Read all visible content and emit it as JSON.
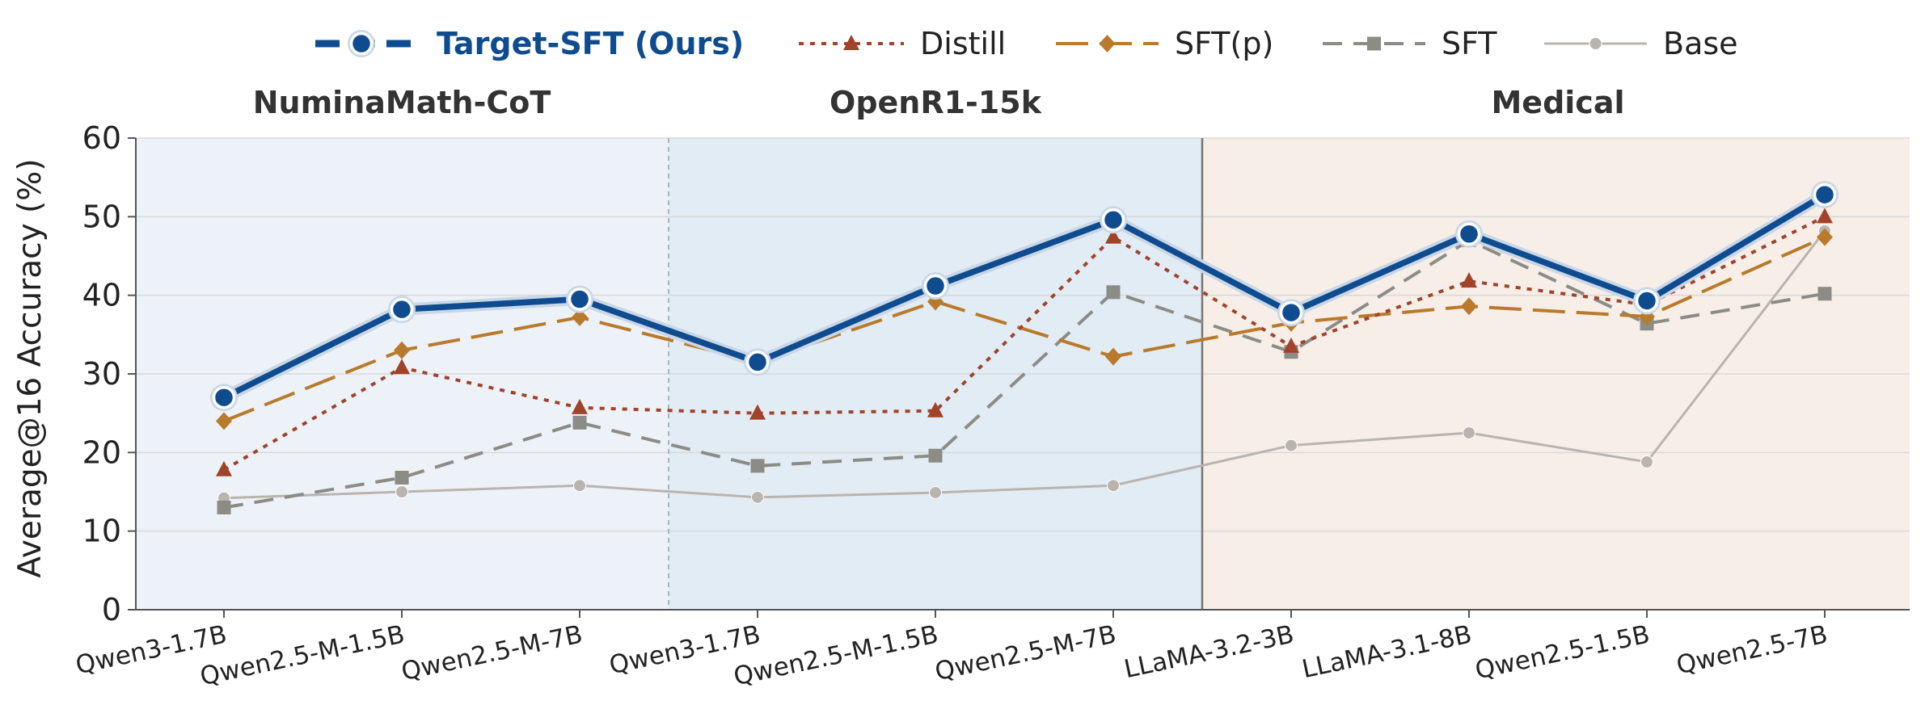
{
  "chart_data": {
    "type": "line",
    "ylabel": "Average@16 Accuracy (%)",
    "ylim": [
      0,
      60
    ],
    "yticks": [
      0,
      10,
      20,
      30,
      40,
      50,
      60
    ],
    "grid": "horizontal",
    "legend_position": "top",
    "groups": [
      {
        "label": "NuminaMath-CoT",
        "categories": [
          "Qwen3-1.7B",
          "Qwen2.5-M-1.5B",
          "Qwen2.5-M-7B"
        ],
        "bg": "#edf2f8"
      },
      {
        "label": "OpenR1-15k",
        "categories": [
          "Qwen3-1.7B",
          "Qwen2.5-M-1.5B",
          "Qwen2.5-M-7B"
        ],
        "bg": "#e2ecf5"
      },
      {
        "label": "Medical",
        "categories": [
          "LLaMA-3.2-3B",
          "LLaMA-3.1-8B",
          "Qwen2.5-1.5B",
          "Qwen2.5-7B"
        ],
        "bg": "#f7eee8"
      }
    ],
    "categories": [
      "Qwen3-1.7B",
      "Qwen2.5-M-1.5B",
      "Qwen2.5-M-7B",
      "Qwen3-1.7B",
      "Qwen2.5-M-1.5B",
      "Qwen2.5-M-7B",
      "LLaMA-3.2-3B",
      "LLaMA-3.1-8B",
      "Qwen2.5-1.5B",
      "Qwen2.5-7B"
    ],
    "series": [
      {
        "name": "Base",
        "color": "#bab4ae",
        "marker": "circle",
        "dash": "solid",
        "values": [
          14.2,
          15.0,
          15.8,
          14.3,
          14.9,
          15.8,
          20.9,
          22.5,
          18.8,
          48.2
        ]
      },
      {
        "name": "SFT",
        "color": "#8c8c86",
        "marker": "square",
        "dash": "dashed",
        "values": [
          13.0,
          16.8,
          23.8,
          18.3,
          19.6,
          40.4,
          32.8,
          47.0,
          36.4,
          40.2
        ]
      },
      {
        "name": "SFT(p)",
        "color": "#b97a2b",
        "marker": "diamond",
        "dash": "longdash",
        "values": [
          24.0,
          33.0,
          37.2,
          31.5,
          39.2,
          32.2,
          36.5,
          38.6,
          37.3,
          47.4
        ]
      },
      {
        "name": "Distill",
        "color": "#a0432a",
        "marker": "triangle",
        "dash": "dotted",
        "values": [
          17.8,
          30.8,
          25.7,
          25.0,
          25.3,
          47.4,
          33.5,
          41.8,
          38.8,
          50.0
        ]
      },
      {
        "name": "Target-SFT (Ours)",
        "color": "#0f4c8f",
        "marker": "circle-large",
        "dash": "solid",
        "values": [
          27.0,
          38.2,
          39.5,
          31.5,
          41.2,
          49.6,
          37.8,
          47.8,
          39.3,
          52.8
        ]
      }
    ],
    "legend_order": [
      "Target-SFT (Ours)",
      "Distill",
      "SFT(p)",
      "SFT",
      "Base"
    ]
  }
}
